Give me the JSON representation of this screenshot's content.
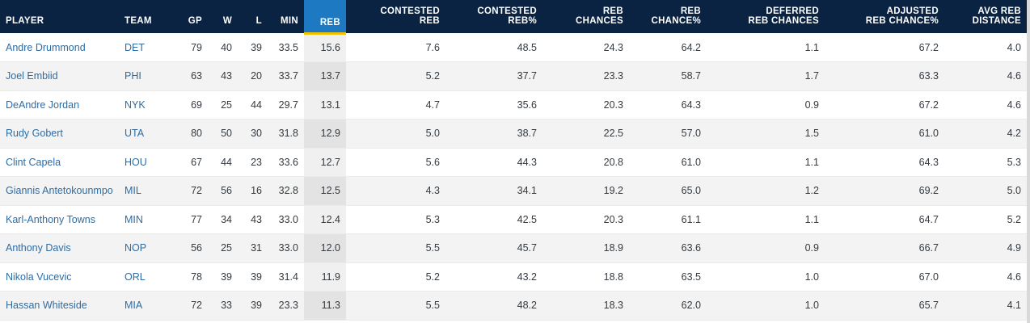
{
  "columns": [
    {
      "label": "PLAYER"
    },
    {
      "label": "TEAM"
    },
    {
      "label": "GP"
    },
    {
      "label": "W"
    },
    {
      "label": "L"
    },
    {
      "label": "MIN"
    },
    {
      "label": "REB"
    },
    {
      "label": "CONTESTED\nREB"
    },
    {
      "label": "CONTESTED\nREB%"
    },
    {
      "label": "REB\nCHANCES"
    },
    {
      "label": "REB\nCHANCE%"
    },
    {
      "label": "DEFERRED\nREB CHANCES"
    },
    {
      "label": "ADJUSTED\nREB CHANCE%"
    },
    {
      "label": "AVG REB\nDISTANCE"
    }
  ],
  "rows": [
    {
      "player": "Andre Drummond",
      "team": "DET",
      "gp": "79",
      "w": "40",
      "l": "39",
      "min": "33.5",
      "reb": "15.6",
      "contested_reb": "7.6",
      "contested_reb_pct": "48.5",
      "reb_chances": "24.3",
      "reb_chance_pct": "64.2",
      "deferred_reb_chances": "1.1",
      "adjusted_reb_chance_pct": "67.2",
      "avg_reb_distance": "4.0"
    },
    {
      "player": "Joel Embiid",
      "team": "PHI",
      "gp": "63",
      "w": "43",
      "l": "20",
      "min": "33.7",
      "reb": "13.7",
      "contested_reb": "5.2",
      "contested_reb_pct": "37.7",
      "reb_chances": "23.3",
      "reb_chance_pct": "58.7",
      "deferred_reb_chances": "1.7",
      "adjusted_reb_chance_pct": "63.3",
      "avg_reb_distance": "4.6"
    },
    {
      "player": "DeAndre Jordan",
      "team": "NYK",
      "gp": "69",
      "w": "25",
      "l": "44",
      "min": "29.7",
      "reb": "13.1",
      "contested_reb": "4.7",
      "contested_reb_pct": "35.6",
      "reb_chances": "20.3",
      "reb_chance_pct": "64.3",
      "deferred_reb_chances": "0.9",
      "adjusted_reb_chance_pct": "67.2",
      "avg_reb_distance": "4.6"
    },
    {
      "player": "Rudy Gobert",
      "team": "UTA",
      "gp": "80",
      "w": "50",
      "l": "30",
      "min": "31.8",
      "reb": "12.9",
      "contested_reb": "5.0",
      "contested_reb_pct": "38.7",
      "reb_chances": "22.5",
      "reb_chance_pct": "57.0",
      "deferred_reb_chances": "1.5",
      "adjusted_reb_chance_pct": "61.0",
      "avg_reb_distance": "4.2"
    },
    {
      "player": "Clint Capela",
      "team": "HOU",
      "gp": "67",
      "w": "44",
      "l": "23",
      "min": "33.6",
      "reb": "12.7",
      "contested_reb": "5.6",
      "contested_reb_pct": "44.3",
      "reb_chances": "20.8",
      "reb_chance_pct": "61.0",
      "deferred_reb_chances": "1.1",
      "adjusted_reb_chance_pct": "64.3",
      "avg_reb_distance": "5.3"
    },
    {
      "player": "Giannis Antetokounmpo",
      "team": "MIL",
      "gp": "72",
      "w": "56",
      "l": "16",
      "min": "32.8",
      "reb": "12.5",
      "contested_reb": "4.3",
      "contested_reb_pct": "34.1",
      "reb_chances": "19.2",
      "reb_chance_pct": "65.0",
      "deferred_reb_chances": "1.2",
      "adjusted_reb_chance_pct": "69.2",
      "avg_reb_distance": "5.0"
    },
    {
      "player": "Karl-Anthony Towns",
      "team": "MIN",
      "gp": "77",
      "w": "34",
      "l": "43",
      "min": "33.0",
      "reb": "12.4",
      "contested_reb": "5.3",
      "contested_reb_pct": "42.5",
      "reb_chances": "20.3",
      "reb_chance_pct": "61.1",
      "deferred_reb_chances": "1.1",
      "adjusted_reb_chance_pct": "64.7",
      "avg_reb_distance": "5.2"
    },
    {
      "player": "Anthony Davis",
      "team": "NOP",
      "gp": "56",
      "w": "25",
      "l": "31",
      "min": "33.0",
      "reb": "12.0",
      "contested_reb": "5.5",
      "contested_reb_pct": "45.7",
      "reb_chances": "18.9",
      "reb_chance_pct": "63.6",
      "deferred_reb_chances": "0.9",
      "adjusted_reb_chance_pct": "66.7",
      "avg_reb_distance": "4.9"
    },
    {
      "player": "Nikola Vucevic",
      "team": "ORL",
      "gp": "78",
      "w": "39",
      "l": "39",
      "min": "31.4",
      "reb": "11.9",
      "contested_reb": "5.2",
      "contested_reb_pct": "43.2",
      "reb_chances": "18.8",
      "reb_chance_pct": "63.5",
      "deferred_reb_chances": "1.0",
      "adjusted_reb_chance_pct": "67.0",
      "avg_reb_distance": "4.6"
    },
    {
      "player": "Hassan Whiteside",
      "team": "MIA",
      "gp": "72",
      "w": "33",
      "l": "39",
      "min": "23.3",
      "reb": "11.3",
      "contested_reb": "5.5",
      "contested_reb_pct": "48.2",
      "reb_chances": "18.3",
      "reb_chance_pct": "62.0",
      "deferred_reb_chances": "1.0",
      "adjusted_reb_chance_pct": "65.7",
      "avg_reb_distance": "4.1"
    }
  ]
}
